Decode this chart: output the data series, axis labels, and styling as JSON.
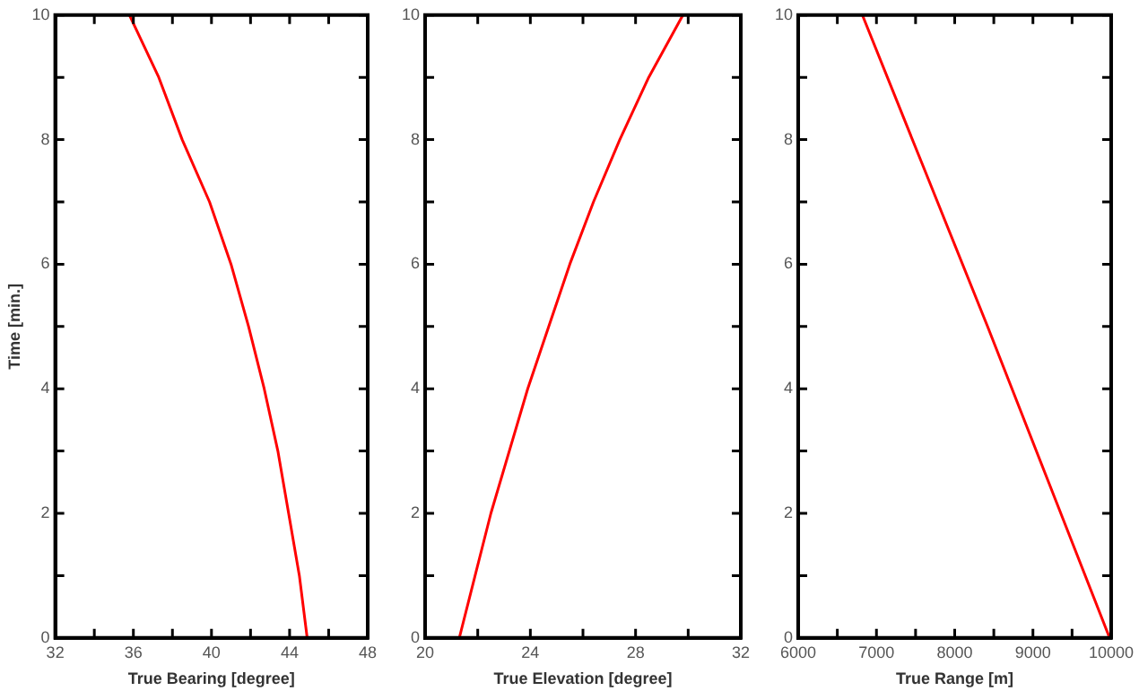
{
  "chart_data": [
    {
      "type": "line",
      "xlabel": "True Bearing [degree]",
      "ylabel": "Time [min.]",
      "xlim": [
        32,
        48
      ],
      "ylim": [
        0,
        10
      ],
      "xticks": [
        32,
        {
          "value": 34,
          "label": null
        },
        36,
        {
          "value": 38,
          "label": null
        },
        40,
        {
          "value": 42,
          "label": null
        },
        44,
        {
          "value": 46,
          "label": null
        },
        48
      ],
      "yticks": [
        0,
        {
          "value": 1,
          "label": null
        },
        2,
        {
          "value": 3,
          "label": null
        },
        4,
        {
          "value": 5,
          "label": null
        },
        6,
        {
          "value": 7,
          "label": null
        },
        8,
        {
          "value": 9,
          "label": null
        },
        10
      ],
      "grid": false,
      "legend": false,
      "marker": "none",
      "line_style": "solid",
      "series": [
        {
          "color": "#ff0000",
          "x": [
            44.9,
            44.5,
            43.95,
            43.4,
            42.7,
            41.9,
            41.0,
            39.9,
            38.5,
            37.3,
            35.8
          ],
          "values": [
            0,
            1,
            2,
            3,
            4,
            5,
            6,
            7,
            8,
            9,
            10
          ]
        }
      ]
    },
    {
      "type": "line",
      "xlabel": "True Elevation [degree]",
      "xlim": [
        20,
        32
      ],
      "ylim": [
        0,
        10
      ],
      "xticks": [
        20,
        {
          "value": 22,
          "label": null
        },
        24,
        {
          "value": 26,
          "label": null
        },
        28,
        {
          "value": 30,
          "label": null
        },
        32
      ],
      "yticks": [
        0,
        {
          "value": 1,
          "label": null
        },
        2,
        {
          "value": 3,
          "label": null
        },
        4,
        {
          "value": 5,
          "label": null
        },
        6,
        {
          "value": 7,
          "label": null
        },
        8,
        {
          "value": 9,
          "label": null
        },
        10
      ],
      "grid": false,
      "legend": false,
      "marker": "none",
      "line_style": "solid",
      "series": [
        {
          "color": "#ff0000",
          "x": [
            21.3,
            21.9,
            22.5,
            23.2,
            23.9,
            24.7,
            25.5,
            26.4,
            27.4,
            28.5,
            29.8
          ],
          "values": [
            0,
            1,
            2,
            3,
            4,
            5,
            6,
            7,
            8,
            9,
            10
          ]
        }
      ]
    },
    {
      "type": "line",
      "xlabel": "True Range [m]",
      "xlim": [
        6000,
        10000
      ],
      "ylim": [
        0,
        10
      ],
      "xticks": [
        6000,
        {
          "value": 6500,
          "label": null
        },
        7000,
        {
          "value": 7500,
          "label": null
        },
        8000,
        {
          "value": 8500,
          "label": null
        },
        9000,
        {
          "value": 9500,
          "label": null
        },
        10000
      ],
      "yticks": [
        0,
        {
          "value": 1,
          "label": null
        },
        2,
        {
          "value": 3,
          "label": null
        },
        4,
        {
          "value": 5,
          "label": null
        },
        6,
        {
          "value": 7,
          "label": null
        },
        8,
        {
          "value": 9,
          "label": null
        },
        10
      ],
      "grid": false,
      "legend": false,
      "marker": "none",
      "line_style": "solid",
      "series": [
        {
          "color": "#ff0000",
          "x": [
            9980,
            9200,
            8420,
            7620,
            6820
          ],
          "values": [
            0,
            2.5,
            5,
            7.5,
            10
          ]
        }
      ]
    }
  ]
}
